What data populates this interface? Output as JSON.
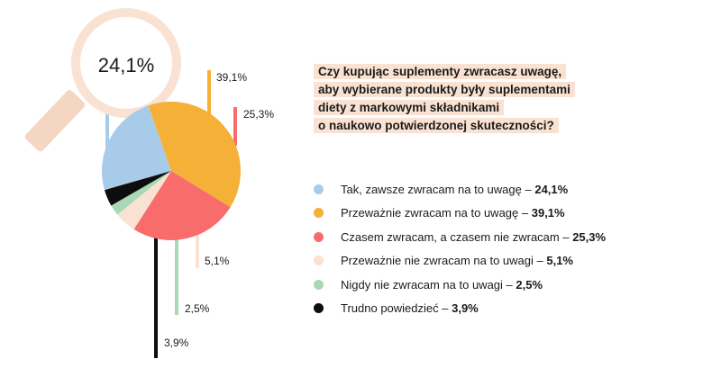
{
  "chart_data": {
    "type": "pie",
    "question": "Czy kupując suplementy zwracasz uwagę, aby wybierane produkty były suplementami diety z markowymi składnikami o naukowo potwierdzonej skuteczności?",
    "question_lines": [
      "Czy kupując suplementy zwracasz uwagę,",
      "aby wybierane produkty były suplementami",
      "diety z markowymi składnikami",
      "o naukowo potwierdzonej skuteczności?"
    ],
    "highlight": {
      "label": "24,1%",
      "value": 24.1
    },
    "slices": [
      {
        "label": "Tak, zawsze zwracam na to uwagę",
        "value": 24.1,
        "display": "24,1%",
        "color": "#a9cbea"
      },
      {
        "label": "Przeważnie zwracam na to uwagę",
        "value": 39.1,
        "display": "39,1%",
        "color": "#f5b037"
      },
      {
        "label": "Czasem zwracam, a czasem nie zwracam",
        "value": 25.3,
        "display": "25,3%",
        "color": "#f86d6c"
      },
      {
        "label": "Przeważnie nie zwracam na to uwagi",
        "value": 5.1,
        "display": "5,1%",
        "color": "#f9e2d2"
      },
      {
        "label": "Nigdy nie zwracam na to uwagi",
        "value": 2.5,
        "display": "2,5%",
        "color": "#a8d8b5"
      },
      {
        "label": "Trudno powiedzieć",
        "value": 3.9,
        "display": "3,9%",
        "color": "#0d0d0d"
      }
    ]
  }
}
